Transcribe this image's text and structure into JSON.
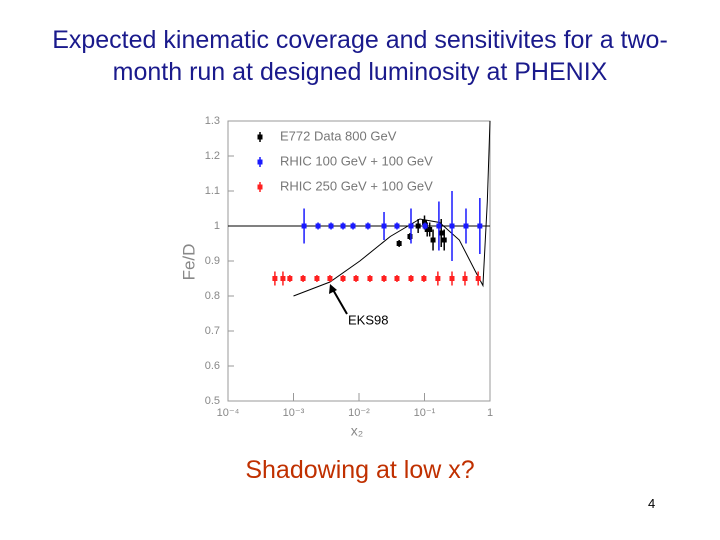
{
  "chart_data": {
    "type": "scatter",
    "title": "Expected kinematic coverage and sensitivites for a two-month run at designed luminosity at PHENIX",
    "x_label": "x₂",
    "y_label": "Fe/D",
    "xlog": true,
    "xlim": [
      0.0001,
      1
    ],
    "xticks": [
      {
        "value": 0.0001,
        "label": "10⁻⁴"
      },
      {
        "value": 0.001,
        "label": "10⁻³"
      },
      {
        "value": 0.01,
        "label": "10⁻²"
      },
      {
        "value": 0.1,
        "label": "10⁻¹"
      },
      1
    ],
    "ylim": [
      0.5,
      1.3
    ],
    "yticks": [
      0.5,
      0.6,
      0.7,
      0.8,
      0.9,
      1,
      1.1,
      1.2,
      1.3
    ],
    "reference_line": 1,
    "legend": "upper left",
    "series": [
      {
        "name": "E772 Data 800 GeV",
        "color": "#000000",
        "x": [
          0.041,
          0.06,
          0.08,
          0.1,
          0.11,
          0.12,
          0.135,
          0.18,
          0.2
        ],
        "values": [
          0.95,
          0.97,
          1.0,
          1.01,
          0.99,
          0.99,
          0.96,
          0.98,
          0.96
        ],
        "errors": [
          0.01,
          0.01,
          0.02,
          0.02,
          0.02,
          0.02,
          0.03,
          0.04,
          0.03
        ]
      },
      {
        "name": "RHIC 100 GeV + 100 GeV",
        "color": "#1a1aff",
        "x": [
          0.00145,
          0.00237,
          0.00374,
          0.0057,
          0.0081,
          0.0137,
          0.0241,
          0.038,
          0.0622,
          0.102,
          0.166,
          0.263,
          0.43,
          0.7
        ],
        "values": [
          1,
          1,
          1,
          1,
          1,
          1,
          1,
          1,
          1,
          1,
          1,
          1,
          1,
          1
        ],
        "errors": [
          0.05,
          0.01,
          0.01,
          0.01,
          0.01,
          0.01,
          0.04,
          0.01,
          0.05,
          0.01,
          0.07,
          0.1,
          0.05,
          0.08
        ]
      },
      {
        "name": "RHIC 250 GeV + 100 GeV",
        "color": "#ff2020",
        "x": [
          0.00052,
          0.00069,
          0.00088,
          0.0014,
          0.00228,
          0.0036,
          0.0057,
          0.009,
          0.0147,
          0.0241,
          0.038,
          0.0622,
          0.098,
          0.16,
          0.263,
          0.415,
          0.66
        ],
        "values": [
          0.85,
          0.85,
          0.85,
          0.85,
          0.85,
          0.85,
          0.85,
          0.85,
          0.85,
          0.85,
          0.85,
          0.85,
          0.85,
          0.85,
          0.85,
          0.85,
          0.85
        ],
        "errors": [
          0.02,
          0.02,
          0.01,
          0.01,
          0.01,
          0.01,
          0.01,
          0.01,
          0.01,
          0.01,
          0.01,
          0.01,
          0.01,
          0.02,
          0.02,
          0.02,
          0.02
        ]
      }
    ],
    "curve": {
      "label": "EKS98",
      "color": "#000000",
      "x": [
        0.001,
        0.0036,
        0.0103,
        0.03,
        0.085,
        0.17,
        0.34,
        0.6,
        0.78,
        0.91,
        1.0
      ],
      "values": [
        0.8,
        0.84,
        0.9,
        0.97,
        1.02,
        1.01,
        0.96,
        0.87,
        0.83,
        1.07,
        1.3
      ]
    },
    "subtitle": "Shadowing at low x?",
    "page_number": 4
  }
}
